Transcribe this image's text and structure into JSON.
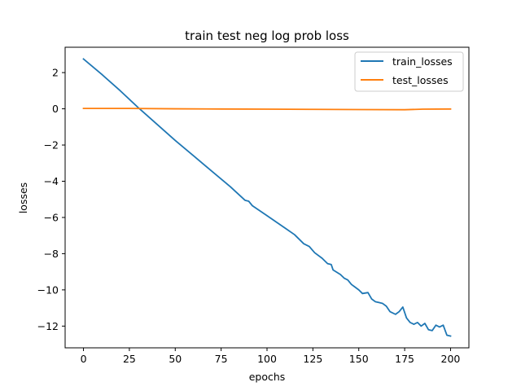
{
  "chart_data": {
    "type": "line",
    "title": "train test neg log prob loss",
    "xlabel": "epochs",
    "ylabel": "losses",
    "xlim": [
      -10,
      210
    ],
    "ylim": [
      -13.2,
      3.4
    ],
    "xticks": [
      0,
      25,
      50,
      75,
      100,
      125,
      150,
      175,
      200
    ],
    "yticks": [
      2,
      0,
      -2,
      -4,
      -6,
      -8,
      -10,
      -12
    ],
    "ytick_labels": [
      "2",
      "0",
      "−2",
      "−4",
      "−6",
      "−8",
      "−10",
      "−12"
    ],
    "legend": {
      "placement": "top-right",
      "frame": true
    },
    "grid": false,
    "series": [
      {
        "name": "train_losses",
        "color": "#1f77b4",
        "points": [
          [
            0,
            2.75
          ],
          [
            10,
            1.9
          ],
          [
            20,
            1.0
          ],
          [
            30,
            0.05
          ],
          [
            40,
            -0.85
          ],
          [
            50,
            -1.75
          ],
          [
            60,
            -2.6
          ],
          [
            70,
            -3.45
          ],
          [
            80,
            -4.3
          ],
          [
            88,
            -5.05
          ],
          [
            90,
            -5.1
          ],
          [
            92,
            -5.35
          ],
          [
            100,
            -5.9
          ],
          [
            110,
            -6.6
          ],
          [
            115,
            -6.95
          ],
          [
            120,
            -7.45
          ],
          [
            123,
            -7.6
          ],
          [
            126,
            -7.95
          ],
          [
            130,
            -8.25
          ],
          [
            133,
            -8.55
          ],
          [
            135,
            -8.6
          ],
          [
            136,
            -8.9
          ],
          [
            140,
            -9.15
          ],
          [
            142,
            -9.35
          ],
          [
            144,
            -9.45
          ],
          [
            146,
            -9.7
          ],
          [
            148,
            -9.85
          ],
          [
            150,
            -10.0
          ],
          [
            152,
            -10.2
          ],
          [
            155,
            -10.15
          ],
          [
            157,
            -10.5
          ],
          [
            159,
            -10.65
          ],
          [
            161,
            -10.7
          ],
          [
            163,
            -10.75
          ],
          [
            165,
            -10.9
          ],
          [
            167,
            -11.2
          ],
          [
            170,
            -11.35
          ],
          [
            172,
            -11.2
          ],
          [
            174,
            -10.95
          ],
          [
            176,
            -11.55
          ],
          [
            178,
            -11.8
          ],
          [
            180,
            -11.9
          ],
          [
            182,
            -11.8
          ],
          [
            184,
            -12.0
          ],
          [
            186,
            -11.85
          ],
          [
            188,
            -12.2
          ],
          [
            190,
            -12.25
          ],
          [
            192,
            -11.95
          ],
          [
            194,
            -12.05
          ],
          [
            196,
            -11.95
          ],
          [
            198,
            -12.5
          ],
          [
            200,
            -12.55
          ]
        ]
      },
      {
        "name": "test_losses",
        "color": "#ff7f0e",
        "points": [
          [
            0,
            0.02
          ],
          [
            25,
            0.02
          ],
          [
            50,
            0.0
          ],
          [
            75,
            -0.01
          ],
          [
            100,
            -0.02
          ],
          [
            125,
            -0.03
          ],
          [
            150,
            -0.04
          ],
          [
            175,
            -0.05
          ],
          [
            185,
            -0.02
          ],
          [
            200,
            -0.01
          ]
        ]
      }
    ]
  }
}
